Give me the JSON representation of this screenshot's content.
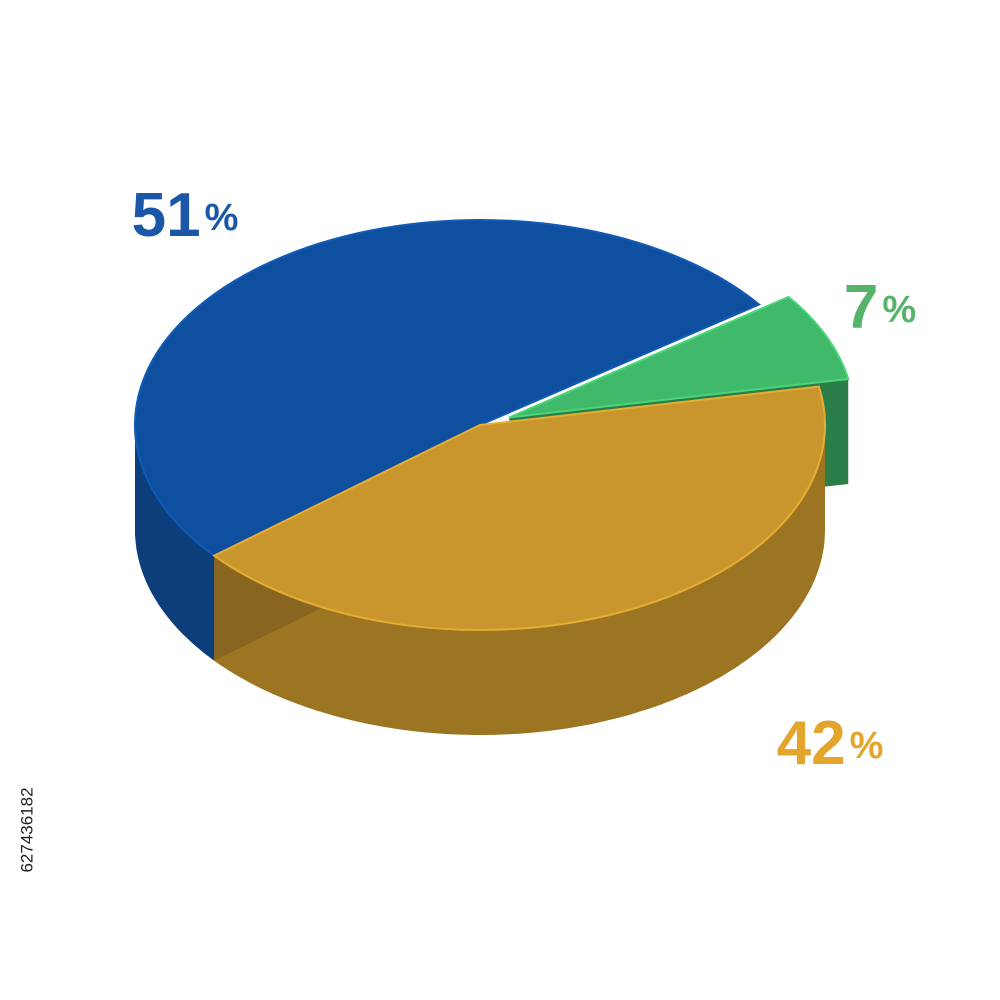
{
  "chart_data": {
    "type": "pie",
    "three_d": true,
    "values": [
      51,
      7,
      42
    ],
    "value_labels": [
      "51%",
      "7%",
      "42%"
    ],
    "colors": [
      "#0f4f9f",
      "#41b96a",
      "#c8962d"
    ],
    "label_colors": [
      "#1b57a9",
      "#55b469",
      "#e3a52b"
    ],
    "exploded": [
      false,
      true,
      false
    ]
  },
  "side_text": "627436182"
}
